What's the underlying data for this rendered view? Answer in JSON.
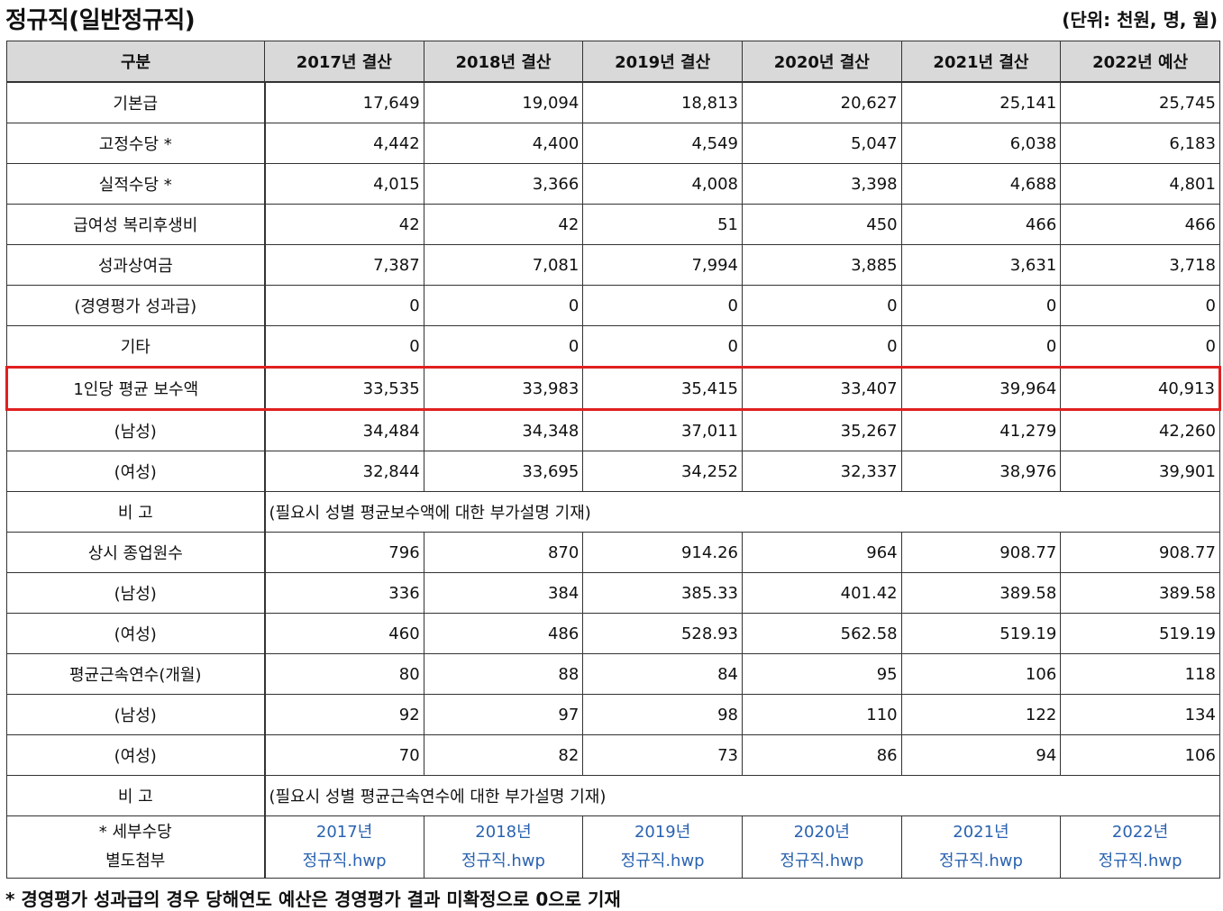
{
  "title": "정규직(일반정규직)",
  "unit": "(단위: 천원, 명, 월)",
  "columns": [
    "구분",
    "2017년 결산",
    "2018년 결산",
    "2019년 결산",
    "2020년 결산",
    "2021년 결산",
    "2022년 예산"
  ],
  "rows": [
    {
      "label": "기본급",
      "values": [
        "17,649",
        "19,094",
        "18,813",
        "20,627",
        "25,141",
        "25,745"
      ]
    },
    {
      "label": "고정수당 *",
      "values": [
        "4,442",
        "4,400",
        "4,549",
        "5,047",
        "6,038",
        "6,183"
      ]
    },
    {
      "label": "실적수당 *",
      "values": [
        "4,015",
        "3,366",
        "4,008",
        "3,398",
        "4,688",
        "4,801"
      ]
    },
    {
      "label": "급여성 복리후생비",
      "values": [
        "42",
        "42",
        "51",
        "450",
        "466",
        "466"
      ]
    },
    {
      "label": "성과상여금",
      "values": [
        "7,387",
        "7,081",
        "7,994",
        "3,885",
        "3,631",
        "3,718"
      ]
    },
    {
      "label": "(경영평가 성과급)",
      "values": [
        "0",
        "0",
        "0",
        "0",
        "0",
        "0"
      ]
    },
    {
      "label": "기타",
      "values": [
        "0",
        "0",
        "0",
        "0",
        "0",
        "0"
      ]
    },
    {
      "label": "1인당 평균 보수액",
      "values": [
        "33,535",
        "33,983",
        "35,415",
        "33,407",
        "39,964",
        "40,913"
      ]
    },
    {
      "label": "(남성)",
      "values": [
        "34,484",
        "34,348",
        "37,011",
        "35,267",
        "41,279",
        "42,260"
      ]
    },
    {
      "label": "(여성)",
      "values": [
        "32,844",
        "33,695",
        "34,252",
        "32,337",
        "38,976",
        "39,901"
      ]
    }
  ],
  "note1": {
    "label": "비 고",
    "text": "(필요시 성별 평균보수액에 대한 부가설명 기재)"
  },
  "rows2": [
    {
      "label": "상시 종업원수",
      "values": [
        "796",
        "870",
        "914.26",
        "964",
        "908.77",
        "908.77"
      ]
    },
    {
      "label": "(남성)",
      "values": [
        "336",
        "384",
        "385.33",
        "401.42",
        "389.58",
        "389.58"
      ]
    },
    {
      "label": "(여성)",
      "values": [
        "460",
        "486",
        "528.93",
        "562.58",
        "519.19",
        "519.19"
      ]
    },
    {
      "label": "평균근속연수(개월)",
      "values": [
        "80",
        "88",
        "84",
        "95",
        "106",
        "118"
      ]
    },
    {
      "label": "(남성)",
      "values": [
        "92",
        "97",
        "98",
        "110",
        "122",
        "134"
      ]
    },
    {
      "label": "(여성)",
      "values": [
        "70",
        "82",
        "73",
        "86",
        "94",
        "106"
      ]
    }
  ],
  "note2": {
    "label": "비 고",
    "text": "(필요시 성별 평균근속연수에 대한 부가설명 기재)"
  },
  "attach": {
    "label_line1": "* 세부수당",
    "label_line2": "별도첨부",
    "files": [
      {
        "year": "2017년",
        "name": "정규직.hwp"
      },
      {
        "year": "2018년",
        "name": "정규직.hwp"
      },
      {
        "year": "2019년",
        "name": "정규직.hwp"
      },
      {
        "year": "2020년",
        "name": "정규직.hwp"
      },
      {
        "year": "2021년",
        "name": "정규직.hwp"
      },
      {
        "year": "2022년",
        "name": "정규직.hwp"
      }
    ]
  },
  "footnote": "* 경영평가 성과급의 경우 당해연도 예산은 경영평가 결과 미확정으로 0으로 기재"
}
